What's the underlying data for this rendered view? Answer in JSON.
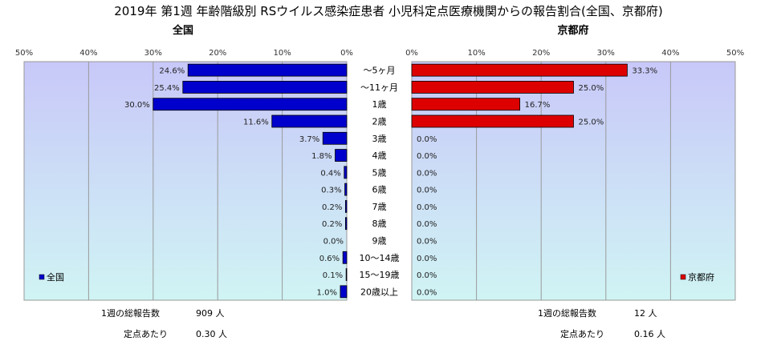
{
  "title": "2019年 第1週 年齢階級別 RSウイルス感染症患者 小児科定点医療機関からの報告割合(全国、京都府)",
  "colors": {
    "national": "#0000cc",
    "kyoto": "#dd0000",
    "plot_bg_top": "#c8c8f8",
    "plot_bg_bottom": "#d0f4f4"
  },
  "chart_data": [
    {
      "type": "bar",
      "orientation": "horizontal",
      "direction": "right-to-left",
      "subtitle": "全国",
      "legend": "全国",
      "legend_position": "bottom-left",
      "xlim": [
        0,
        50
      ],
      "ticks": [
        "50%",
        "40%",
        "30%",
        "20%",
        "10%",
        "0%"
      ],
      "categories": [
        "～5ヶ月",
        "～11ヶ月",
        "1歳",
        "2歳",
        "3歳",
        "4歳",
        "5歳",
        "6歳",
        "7歳",
        "8歳",
        "9歳",
        "10～14歳",
        "15～19歳",
        "20歳以上"
      ],
      "values": [
        24.6,
        25.4,
        30.0,
        11.6,
        3.7,
        1.8,
        0.4,
        0.3,
        0.2,
        0.2,
        0.0,
        0.6,
        0.1,
        1.0
      ],
      "labels": [
        "24.6%",
        "25.4%",
        "30.0%",
        "11.6%",
        "3.7%",
        "1.8%",
        "0.4%",
        "0.3%",
        "0.2%",
        "0.2%",
        "0.0%",
        "0.6%",
        "0.1%",
        "1.0%"
      ],
      "grid": true
    },
    {
      "type": "bar",
      "orientation": "horizontal",
      "direction": "left-to-right",
      "subtitle": "京都府",
      "legend": "京都府",
      "legend_position": "bottom-right",
      "xlim": [
        0,
        50
      ],
      "ticks": [
        "0%",
        "10%",
        "20%",
        "30%",
        "40%",
        "50%"
      ],
      "categories": [
        "～5ヶ月",
        "～11ヶ月",
        "1歳",
        "2歳",
        "3歳",
        "4歳",
        "5歳",
        "6歳",
        "7歳",
        "8歳",
        "9歳",
        "10～14歳",
        "15～19歳",
        "20歳以上"
      ],
      "values": [
        33.3,
        25.0,
        16.7,
        25.0,
        0.0,
        0.0,
        0.0,
        0.0,
        0.0,
        0.0,
        0.0,
        0.0,
        0.0,
        0.0
      ],
      "labels": [
        "33.3%",
        "25.0%",
        "16.7%",
        "25.0%",
        "0.0%",
        "0.0%",
        "0.0%",
        "0.0%",
        "0.0%",
        "0.0%",
        "0.0%",
        "0.0%",
        "0.0%",
        "0.0%"
      ],
      "grid": true
    }
  ],
  "footer": {
    "national": {
      "total_label": "1週の総報告数",
      "total_value": "909 人",
      "per_label": "定点あたり",
      "per_value": "0.30 人"
    },
    "kyoto": {
      "total_label": "1週の総報告数",
      "total_value": "12 人",
      "per_label": "定点あたり",
      "per_value": "0.16 人"
    }
  }
}
